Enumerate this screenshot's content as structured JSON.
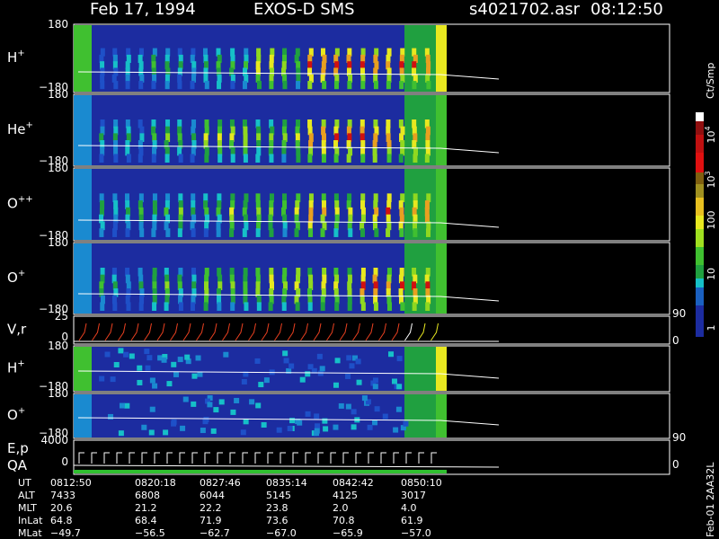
{
  "header": {
    "date": "Feb 17, 1994",
    "instrument": "EXOS-D SMS",
    "file": "s4021702.asr",
    "time": "08:12:50"
  },
  "panels": [
    {
      "label": "H",
      "sup": "+",
      "ymax": "180",
      "ymin": "−180"
    },
    {
      "label": "He",
      "sup": "+",
      "ymax": "180",
      "ymin": "−180"
    },
    {
      "label": "O",
      "sup": "++",
      "ymax": "180",
      "ymin": "−180"
    },
    {
      "label": "O",
      "sup": "+",
      "ymax": "180",
      "ymin": "−180"
    },
    {
      "label": "V,r",
      "ymax": "25",
      "ymin": "0",
      "right": [
        "90",
        "0"
      ]
    },
    {
      "label": "H",
      "sup": "+",
      "ymax": "180",
      "ymin": "−180"
    },
    {
      "label": "O",
      "sup": "+",
      "ymax": "180",
      "ymin": "−180"
    },
    {
      "label": "E,p",
      "label2": "QA",
      "ymax": "4000",
      "ymin": "0",
      "right": [
        "90",
        "0"
      ]
    }
  ],
  "colorbar": {
    "unit": "Ct/Smp",
    "ticks": [
      {
        "base": "10",
        "exp": "4"
      },
      {
        "base": "10",
        "exp": "3"
      },
      {
        "base": "100"
      },
      {
        "base": "10"
      },
      {
        "base": "1"
      }
    ]
  },
  "footer": "Feb-01 2AA32L",
  "ephemeris": {
    "rows": [
      {
        "name": "UT",
        "values": [
          "0812:50",
          "0820:18",
          "0827:46",
          "0835:14",
          "0842:42",
          "0850:10"
        ]
      },
      {
        "name": "ALT",
        "values": [
          "7433",
          "6808",
          "6044",
          "5145",
          "4125",
          "3017"
        ]
      },
      {
        "name": "MLT",
        "values": [
          "20.6",
          "21.2",
          "22.2",
          "23.8",
          "2.0",
          "4.0"
        ]
      },
      {
        "name": "InLat",
        "values": [
          "64.8",
          "68.4",
          "71.9",
          "73.6",
          "70.8",
          "61.9"
        ]
      },
      {
        "name": "MLat",
        "values": [
          "−49.7",
          "−56.5",
          "−62.7",
          "−67.0",
          "−65.9",
          "−57.0"
        ]
      }
    ]
  }
}
